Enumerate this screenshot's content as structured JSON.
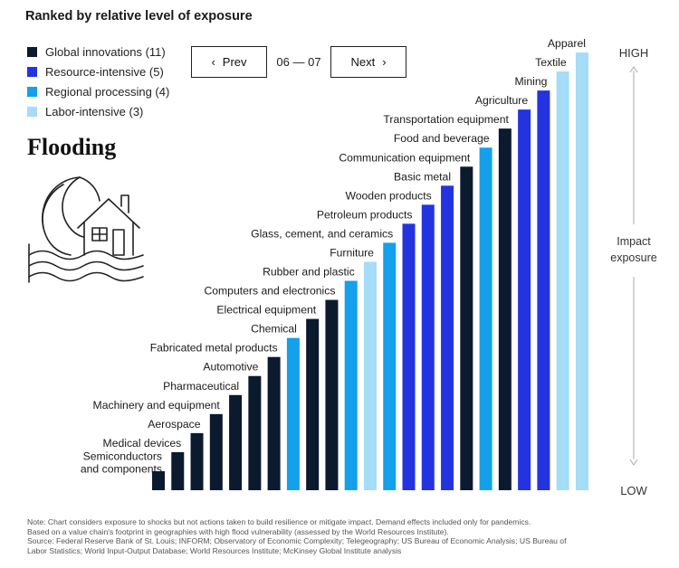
{
  "header": {
    "title": "Ranked by relative level of exposure"
  },
  "legend": [
    {
      "label": "Global innovations (11)",
      "color": "#0b1a2e"
    },
    {
      "label": "Resource-intensive (5)",
      "color": "#2433e0"
    },
    {
      "label": "Regional processing (4)",
      "color": "#14a0ea"
    },
    {
      "label": "Labor-intensive (3)",
      "color": "#a5dcf7"
    }
  ],
  "pager": {
    "prev_label": "Prev",
    "index": "06 — 07",
    "next_label": "Next"
  },
  "hazard": {
    "title": "Flooding",
    "icon": "flood-house-icon"
  },
  "chart_data": {
    "type": "bar",
    "categories": [
      "Semiconductors and components",
      "Medical devices",
      "Aerospace",
      "Machinery and equipment",
      "Pharmaceutical",
      "Automotive",
      "Fabricated metal products",
      "Chemical",
      "Electrical equipment",
      "Computers and electronics",
      "Rubber and plastic",
      "Furniture",
      "Glass, cement, and ceramics",
      "Petroleum products",
      "Wooden products",
      "Basic metal",
      "Communication equipment",
      "Food and beverage",
      "Transportation equipment",
      "Agriculture",
      "Mining",
      "Textile",
      "Apparel"
    ],
    "values": [
      1,
      2,
      3,
      4,
      5,
      6,
      7,
      8,
      9,
      10,
      11,
      12,
      13,
      14,
      15,
      16,
      17,
      18,
      19,
      20,
      21,
      22,
      23
    ],
    "groups": [
      "Global innovations",
      "Global innovations",
      "Global innovations",
      "Global innovations",
      "Global innovations",
      "Global innovations",
      "Global innovations",
      "Regional processing",
      "Global innovations",
      "Global innovations",
      "Regional processing",
      "Labor-intensive",
      "Regional processing",
      "Resource-intensive",
      "Resource-intensive",
      "Resource-intensive",
      "Global innovations",
      "Regional processing",
      "Global innovations",
      "Resource-intensive",
      "Resource-intensive",
      "Labor-intensive",
      "Labor-intensive"
    ],
    "group_colors": {
      "Global innovations": "#0b1a2e",
      "Resource-intensive": "#2433e0",
      "Regional processing": "#14a0ea",
      "Labor-intensive": "#a5dcf7"
    },
    "ylim": [
      0,
      23
    ],
    "y_axis": {
      "top": "HIGH",
      "middle": [
        "Impact",
        "exposure"
      ],
      "bottom": "LOW"
    }
  },
  "footnote": [
    "Note: Chart considers exposure to shocks but not actions taken to build resilience or mitigate impact. Demand effects included only for pandemics.",
    "Based on a value chain's footprint in geographies with high flood vulnerability (assessed by the World Resources Institute).",
    "Source: Federal Reserve Bank of St. Louis; INFORM; Observatory of Economic Complexity; Telegeography; US Bureau of Economic Analysis; US Bureau of",
    "Labor Statistics; World Input-Output Database; World Resources Institute; McKinsey Global Institute analysis"
  ]
}
